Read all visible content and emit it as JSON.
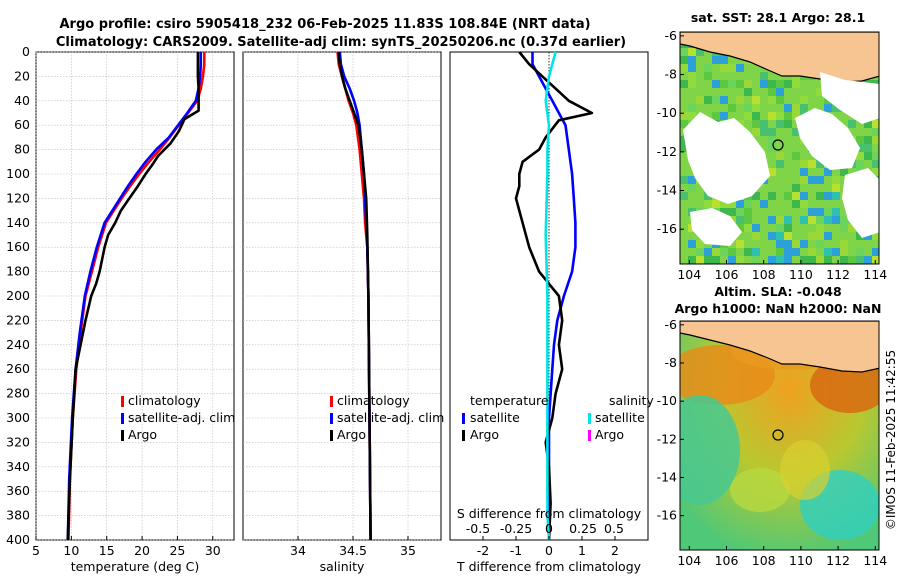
{
  "titles": {
    "line1": "Argo profile: csiro 5905418_232 06-Feb-2025 11.83S 108.84E (NRT data)",
    "line2": "Climatology: CARS2009. Satellite-adj clim: synTS_20250206.nc (0.37d earlier)",
    "sst": "sat. SST: 28.1 Argo: 28.1",
    "sla1": "Altim. SLA: -0.048",
    "sla2": "Argo h1000: NaN h2000: NaN",
    "credit": "©IMOS 11-Feb-2025 11:42:55"
  },
  "colors": {
    "climatology": "#ff0000",
    "satellite": "#0000ff",
    "argo": "#000000",
    "sal_satellite": "#00e5e5",
    "sal_argo": "#ff00ff"
  },
  "legends": {
    "temp": [
      "climatology",
      "satellite-adj. clim",
      "Argo"
    ],
    "sal": [
      "climatology",
      "satellite-adj. clim",
      "Argo"
    ],
    "diff_head_t": "temperature",
    "diff_head_s": "salinity",
    "diff_t": [
      "satellite",
      "Argo"
    ],
    "diff_s": [
      "satellite",
      "Argo"
    ]
  },
  "depth_ticks": [
    "0",
    "20",
    "40",
    "60",
    "80",
    "100",
    "120",
    "140",
    "160",
    "180",
    "200",
    "220",
    "240",
    "260",
    "280",
    "300",
    "320",
    "340",
    "360",
    "380",
    "400"
  ],
  "chart_data": [
    {
      "type": "line",
      "title": "",
      "xlabel": "temperature (deg C)",
      "ylabel": "",
      "xlim": [
        5,
        33
      ],
      "ylim": [
        400,
        0
      ],
      "xticks": [
        "5",
        "10",
        "15",
        "20",
        "25",
        "30"
      ],
      "series": [
        {
          "name": "climatology",
          "x": [
            28.8,
            28.8,
            28.6,
            28.3,
            27.8,
            26.5,
            25.2,
            23.9,
            22.5,
            21.0,
            19.6,
            18.3,
            17.1,
            16.0,
            14.9,
            13.8,
            12.9,
            12.0,
            11.3,
            10.7,
            10.2,
            9.8,
            9.6
          ],
          "depth": [
            0,
            10,
            20,
            30,
            40,
            50,
            60,
            70,
            80,
            90,
            100,
            110,
            120,
            130,
            140,
            160,
            180,
            200,
            230,
            260,
            300,
            350,
            400
          ]
        },
        {
          "name": "satellite-adj. clim",
          "x": [
            28.3,
            28.3,
            28.2,
            28.0,
            27.6,
            26.4,
            25.1,
            23.8,
            22.0,
            20.5,
            19.2,
            18.0,
            16.9,
            15.8,
            14.7,
            13.6,
            12.7,
            11.9,
            11.2,
            10.6,
            10.1,
            9.7,
            9.5
          ],
          "depth": [
            0,
            10,
            20,
            30,
            40,
            50,
            60,
            70,
            80,
            90,
            100,
            110,
            120,
            130,
            140,
            160,
            180,
            200,
            230,
            260,
            300,
            350,
            400
          ]
        },
        {
          "name": "Argo",
          "x": [
            27.9,
            27.9,
            27.9,
            28.0,
            28.0,
            28.0,
            26.0,
            25.2,
            24.0,
            22.3,
            21.5,
            20.5,
            19.4,
            18.2,
            17.0,
            16.2,
            15.2,
            14.7,
            14.0,
            13.5,
            12.8,
            12.0,
            11.3,
            10.6,
            10.2,
            9.8,
            9.5
          ],
          "depth": [
            0,
            10,
            20,
            30,
            40,
            48,
            55,
            65,
            75,
            85,
            92,
            100,
            110,
            120,
            130,
            140,
            150,
            160,
            180,
            190,
            200,
            220,
            240,
            260,
            300,
            350,
            400
          ]
        }
      ]
    },
    {
      "type": "line",
      "title": "",
      "xlabel": "salinity",
      "ylabel": "",
      "xlim": [
        33.5,
        35.3
      ],
      "ylim": [
        400,
        0
      ],
      "xticks": [
        "34",
        "34.5",
        "35"
      ],
      "series": [
        {
          "name": "climatology",
          "x": [
            34.36,
            34.37,
            34.4,
            34.43,
            34.46,
            34.5,
            34.53,
            34.56,
            34.58,
            34.6,
            34.61,
            34.63,
            34.64,
            34.65,
            34.66
          ],
          "depth": [
            0,
            10,
            20,
            30,
            40,
            50,
            60,
            80,
            100,
            120,
            140,
            160,
            200,
            300,
            400
          ]
        },
        {
          "name": "satellite-adj. clim",
          "x": [
            34.38,
            34.39,
            34.42,
            34.47,
            34.51,
            34.54,
            34.56,
            34.58,
            34.6,
            34.61,
            34.62,
            34.63,
            34.64,
            34.65,
            34.66
          ],
          "depth": [
            0,
            10,
            20,
            30,
            40,
            50,
            60,
            80,
            100,
            120,
            140,
            160,
            200,
            300,
            400
          ]
        },
        {
          "name": "Argo",
          "x": [
            34.37,
            34.38,
            34.4,
            34.43,
            34.47,
            34.51,
            34.55,
            34.58,
            34.6,
            34.62,
            34.63,
            34.64,
            34.65,
            34.66
          ],
          "depth": [
            0,
            10,
            20,
            30,
            40,
            50,
            60,
            80,
            100,
            120,
            150,
            200,
            300,
            400
          ]
        }
      ]
    },
    {
      "type": "line",
      "title": "",
      "xlabel": "T difference from climatology",
      "ylabel": "",
      "xlim": [
        -3,
        3
      ],
      "ylim": [
        400,
        0
      ],
      "xticks": [
        "-2",
        "-1",
        "0",
        "1",
        "2"
      ],
      "top_axis_label": "S difference from climatology",
      "top_ticks": [
        "-0.5",
        "-0.25",
        "0",
        "0.25",
        "0.5"
      ],
      "series": [
        {
          "name": "satellite",
          "x": [
            -0.5,
            -0.5,
            -0.3,
            -0.1,
            0.1,
            0.3,
            0.5,
            0.6,
            0.7,
            0.75,
            0.8,
            0.8,
            0.7,
            0.45,
            0.25,
            0.15,
            0.1,
            0.0,
            0.0,
            0.0
          ],
          "depth": [
            0,
            10,
            20,
            30,
            40,
            50,
            60,
            80,
            100,
            120,
            140,
            160,
            180,
            200,
            220,
            240,
            260,
            300,
            350,
            400
          ]
        },
        {
          "name": "Argo",
          "x": [
            -0.9,
            -0.6,
            -0.2,
            0.2,
            0.6,
            1.3,
            0.3,
            -0.1,
            -0.3,
            -0.8,
            -0.9,
            -0.9,
            -1.0,
            -0.9,
            -0.8,
            -0.6,
            -0.3,
            0.0,
            0.3,
            0.4,
            0.3,
            0.4,
            0.2,
            0.1,
            -0.1,
            0.0,
            0.05,
            0.0
          ],
          "depth": [
            0,
            10,
            20,
            30,
            40,
            50,
            56,
            70,
            80,
            90,
            100,
            110,
            120,
            130,
            140,
            160,
            180,
            190,
            200,
            220,
            240,
            260,
            280,
            300,
            320,
            340,
            370,
            400
          ]
        },
        {
          "name": "salinity satellite",
          "x": [
            0.2,
            0.1,
            0.0,
            -0.1,
            0.0,
            -0.05,
            -0.05,
            -0.1,
            -0.05,
            -0.05,
            -0.05,
            -0.05,
            -0.05,
            0.0
          ],
          "depth": [
            0,
            10,
            20,
            40,
            60,
            80,
            100,
            150,
            200,
            250,
            300,
            350,
            380,
            400
          ]
        }
      ]
    },
    {
      "type": "heatmap",
      "title": "sat. SST: 28.1 Argo: 28.1",
      "xticks": [
        "104",
        "106",
        "108",
        "110",
        "112",
        "114"
      ],
      "yticks": [
        "-6",
        "-8",
        "-10",
        "-12",
        "-14",
        "-16"
      ],
      "xlim": [
        103.5,
        114.2
      ],
      "ylim": [
        -17.8,
        -5.8
      ],
      "argo_position": [
        108.84,
        -11.83
      ]
    },
    {
      "type": "heatmap",
      "title": "Altim. SLA: -0.048",
      "xticks": [
        "104",
        "106",
        "108",
        "110",
        "112",
        "114"
      ],
      "yticks": [
        "-6",
        "-8",
        "-10",
        "-12",
        "-14",
        "-16"
      ],
      "xlim": [
        103.5,
        114.2
      ],
      "ylim": [
        -17.8,
        -5.8
      ],
      "argo_position": [
        108.84,
        -11.83
      ]
    }
  ]
}
